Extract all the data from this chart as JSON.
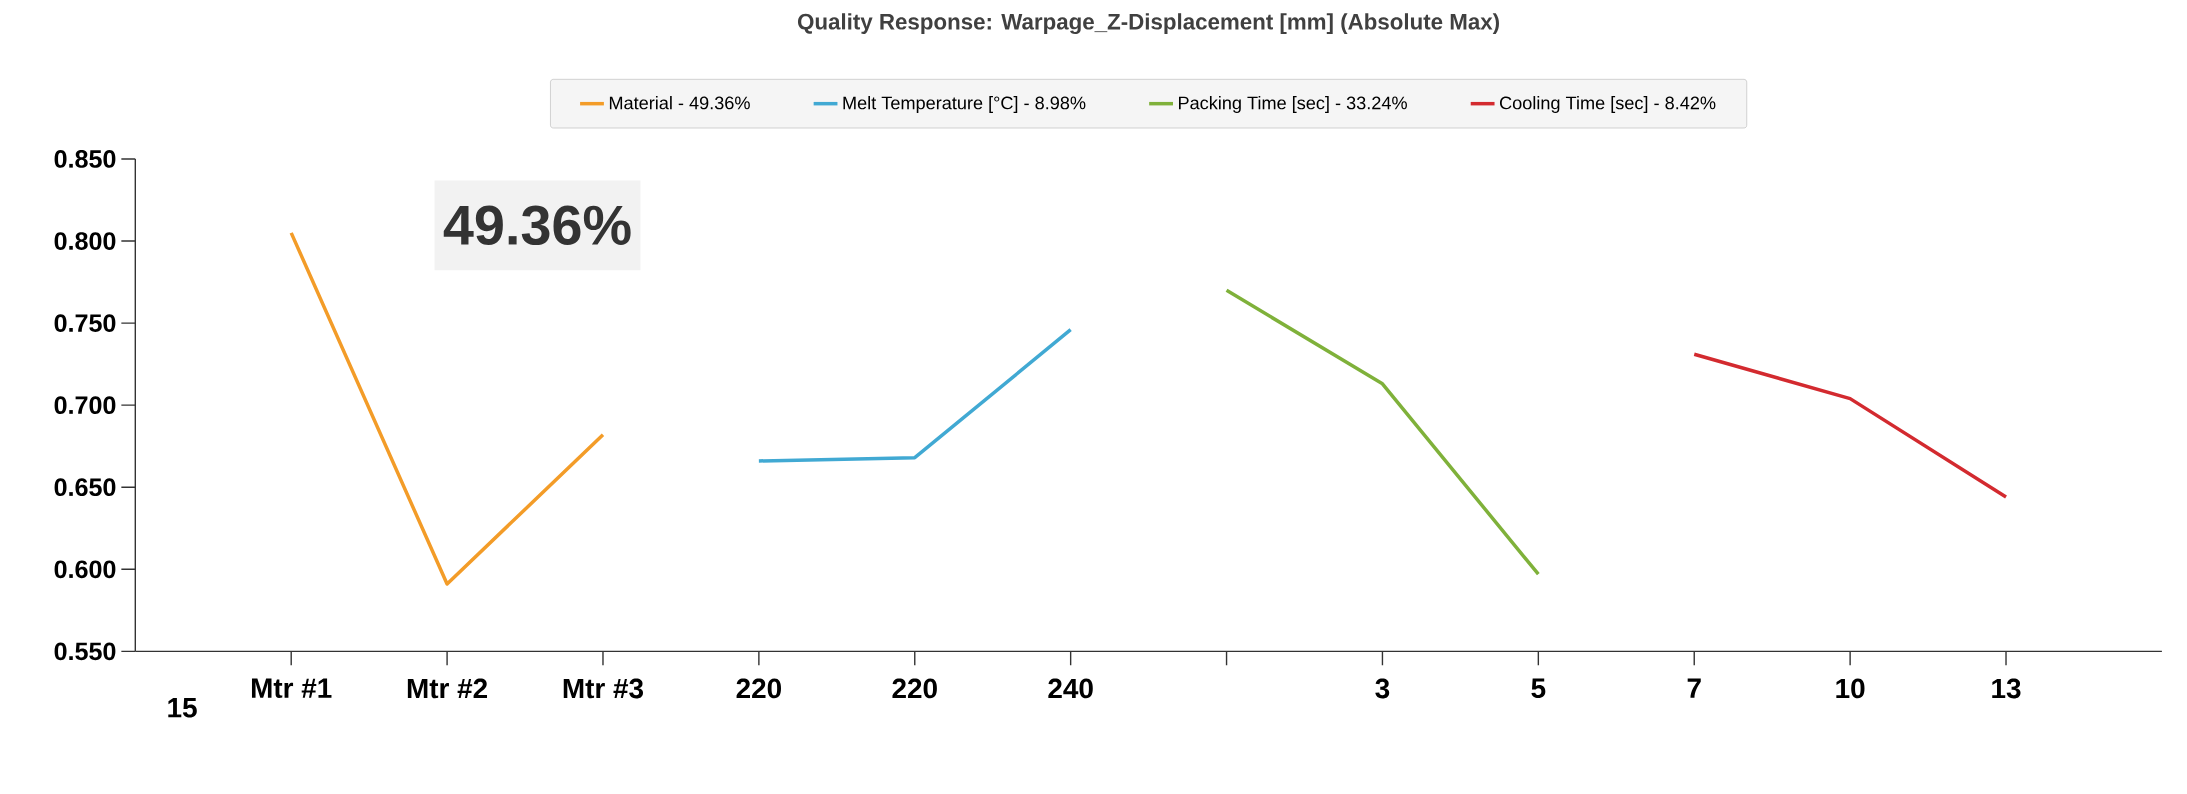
{
  "chart_data": {
    "type": "line",
    "title": "Quality Response: Warpage_Z-Displacement [mm] (Absolute Max)",
    "categories": [
      "Mtr #1",
      "Mtr #2",
      "Mtr #3",
      "220",
      "220",
      "240",
      null,
      "3",
      "5",
      "7",
      "10",
      "13"
    ],
    "series": [
      {
        "name": "Material  - 49.36%",
        "color": "#f39c28",
        "values": [
          0.805,
          0.591,
          0.682,
          null,
          null,
          null,
          null,
          null,
          null,
          null,
          null,
          null
        ]
      },
      {
        "name": "Melt Temperature [°C] - 8.98%",
        "color": "#41a9d3",
        "values": [
          null,
          null,
          null,
          0.666,
          0.668,
          0.746,
          null,
          null,
          null,
          null,
          null,
          null
        ]
      },
      {
        "name": "Packing Time [sec] - 33.24%",
        "color": "#7fb13a",
        "values": [
          null,
          null,
          null,
          null,
          null,
          null,
          0.77,
          0.713,
          0.597,
          null,
          null,
          null
        ]
      },
      {
        "name": "Cooling Time [sec] - 8.42%",
        "color": "#d32a2f",
        "values": [
          null,
          null,
          null,
          null,
          null,
          null,
          null,
          null,
          null,
          0.731,
          0.704,
          0.644
        ]
      }
    ],
    "ylim": [
      0.55,
      0.85
    ],
    "yticks": [
      {
        "value": 0.55,
        "label": "0.550"
      },
      {
        "value": 0.6,
        "label": "0.600"
      },
      {
        "value": 0.65,
        "label": "0.650"
      },
      {
        "value": 0.7,
        "label": "0.700"
      },
      {
        "value": 0.75,
        "label": "0.750"
      },
      {
        "value": 0.8,
        "label": "0.800"
      },
      {
        "value": 0.85,
        "label": "0.850"
      }
    ],
    "annotations": [
      "49.36%",
      "15"
    ],
    "legend": "top",
    "grid": false,
    "marker": "none",
    "line_style": "solid"
  }
}
